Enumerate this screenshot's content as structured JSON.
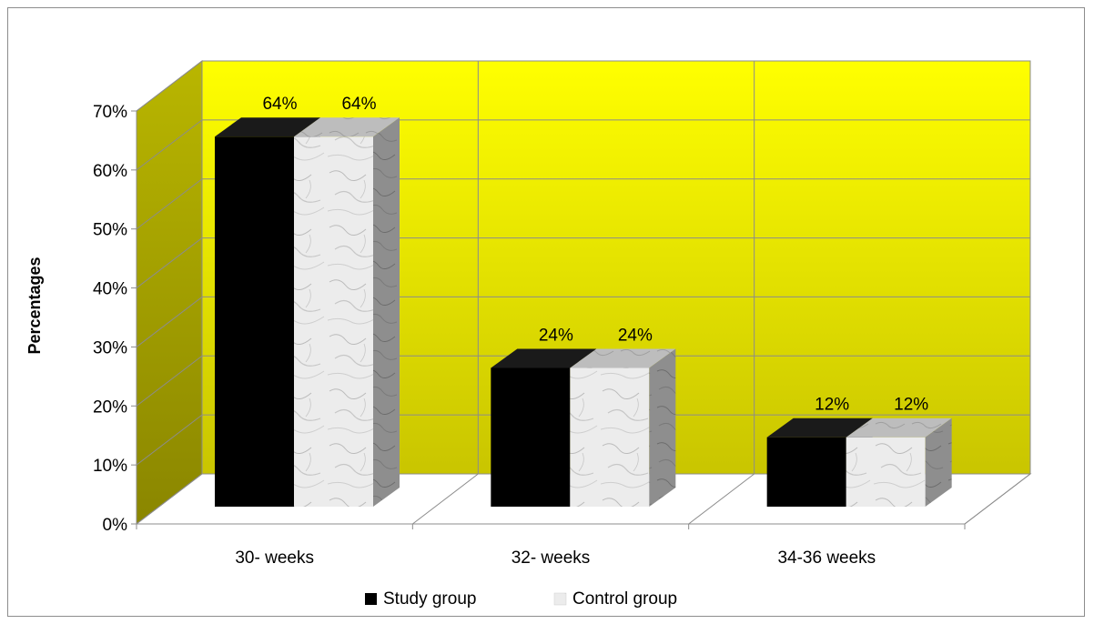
{
  "chart_data": {
    "type": "bar",
    "categories": [
      "30- weeks",
      "32- weeks",
      "34-36 weeks"
    ],
    "series": [
      {
        "name": "Study group",
        "values": [
          64,
          24,
          12
        ],
        "labels": [
          "64%",
          "24%",
          "12%"
        ],
        "color": "#000000"
      },
      {
        "name": "Control group",
        "values": [
          64,
          24,
          12
        ],
        "labels": [
          "64%",
          "24%",
          "12%"
        ],
        "color": "#e8e8e8"
      }
    ],
    "ylabel": "Percentages",
    "xlabel": "",
    "ylim": [
      0,
      70
    ],
    "yticks": [
      "0%",
      "10%",
      "20%",
      "30%",
      "40%",
      "50%",
      "60%",
      "70%"
    ],
    "grid": true,
    "legend_position": "bottom",
    "style": "3d-clustered",
    "wall_colors": [
      "#ffff00",
      "#b8b400"
    ]
  }
}
